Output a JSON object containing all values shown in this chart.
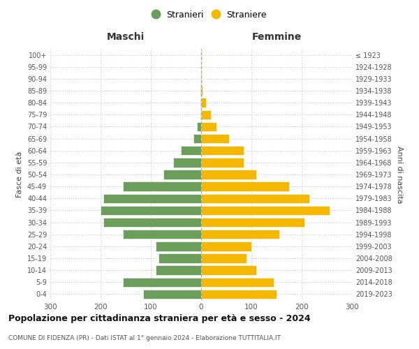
{
  "age_groups": [
    "0-4",
    "5-9",
    "10-14",
    "15-19",
    "20-24",
    "25-29",
    "30-34",
    "35-39",
    "40-44",
    "45-49",
    "50-54",
    "55-59",
    "60-64",
    "65-69",
    "70-74",
    "75-79",
    "80-84",
    "85-89",
    "90-94",
    "95-99",
    "100+"
  ],
  "birth_years": [
    "2019-2023",
    "2014-2018",
    "2009-2013",
    "2004-2008",
    "1999-2003",
    "1994-1998",
    "1989-1993",
    "1984-1988",
    "1979-1983",
    "1974-1978",
    "1969-1973",
    "1964-1968",
    "1959-1963",
    "1954-1958",
    "1949-1953",
    "1944-1948",
    "1939-1943",
    "1934-1938",
    "1929-1933",
    "1924-1928",
    "≤ 1923"
  ],
  "maschi": [
    115,
    155,
    90,
    85,
    90,
    155,
    195,
    200,
    195,
    155,
    75,
    55,
    40,
    15,
    8,
    2,
    1,
    1,
    0,
    0,
    0
  ],
  "femmine": [
    150,
    145,
    110,
    90,
    100,
    155,
    205,
    255,
    215,
    175,
    110,
    85,
    85,
    55,
    30,
    20,
    10,
    3,
    2,
    1,
    1
  ],
  "male_color": "#6a9e5a",
  "female_color": "#f5b800",
  "background_color": "#ffffff",
  "grid_color": "#cccccc",
  "title": "Popolazione per cittadinanza straniera per età e sesso - 2024",
  "subtitle": "COMUNE DI FIDENZA (PR) - Dati ISTAT al 1° gennaio 2024 - Elaborazione TUTTITALIA.IT",
  "xlabel_left": "Maschi",
  "xlabel_right": "Femmine",
  "ylabel_left": "Fasce di età",
  "ylabel_right": "Anni di nascita",
  "legend_male": "Stranieri",
  "legend_female": "Straniere",
  "xlim": 300
}
